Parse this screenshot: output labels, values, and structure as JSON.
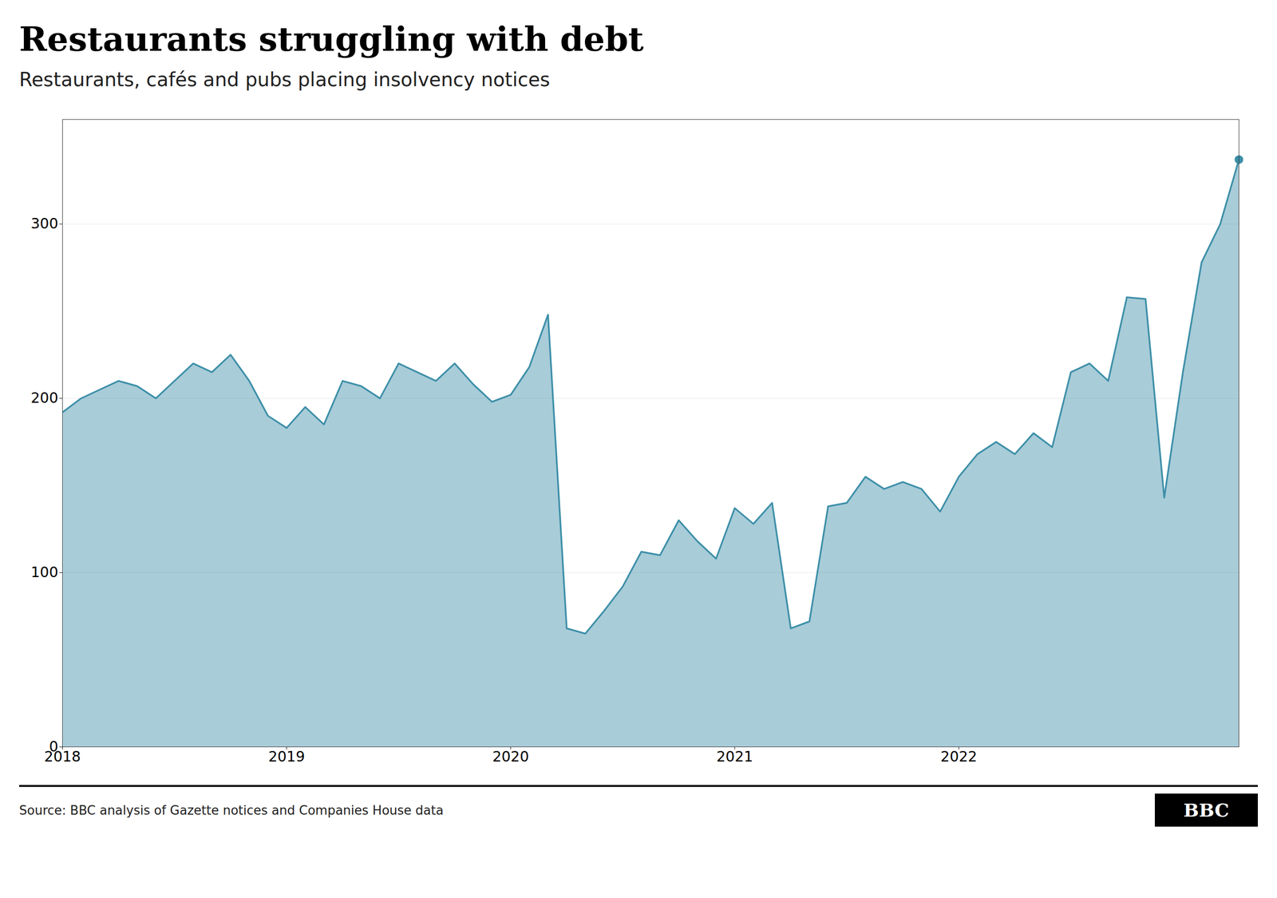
{
  "chart_data": {
    "type": "area",
    "title": "Restaurants struggling with debt",
    "subtitle": "Restaurants, cafés and pubs placing insolvency notices",
    "source": "Source: BBC analysis of Gazette notices and Companies House data",
    "annotations": [
      "BBC"
    ],
    "categories": [
      "2018",
      null,
      null,
      null,
      null,
      null,
      null,
      null,
      null,
      null,
      null,
      null,
      "2019",
      null,
      null,
      null,
      null,
      null,
      null,
      null,
      null,
      null,
      null,
      null,
      "2020",
      null,
      null,
      null,
      null,
      null,
      null,
      null,
      null,
      null,
      null,
      null,
      "2021",
      null,
      null,
      null,
      null,
      null,
      null,
      null,
      null,
      null,
      null,
      null,
      "2022",
      null,
      null,
      null,
      null,
      null,
      null,
      null,
      null,
      null,
      null,
      null,
      null,
      null,
      null,
      null
    ],
    "values": [
      192,
      200,
      205,
      210,
      207,
      200,
      210,
      220,
      215,
      225,
      210,
      190,
      183,
      195,
      185,
      210,
      207,
      200,
      220,
      215,
      210,
      220,
      208,
      198,
      202,
      218,
      248,
      68,
      65,
      78,
      92,
      112,
      110,
      130,
      118,
      108,
      137,
      128,
      140,
      68,
      72,
      138,
      140,
      155,
      148,
      152,
      148,
      135,
      155,
      168,
      175,
      168,
      180,
      172,
      215,
      220,
      210,
      258,
      257,
      143,
      215,
      278,
      300,
      337
    ],
    "color": "#3d8fa8",
    "ylim": [
      0,
      360
    ],
    "yticks": [
      0,
      100,
      200,
      300
    ],
    "grid": true
  }
}
